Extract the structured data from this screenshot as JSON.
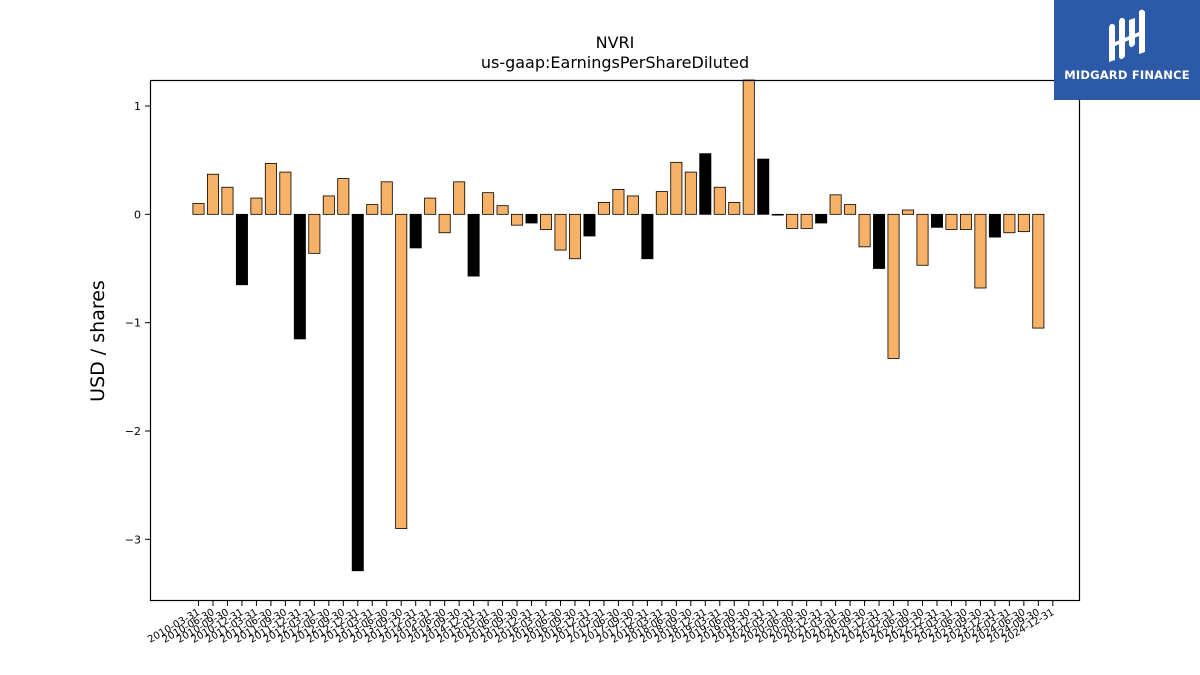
{
  "brand": {
    "name": "MIDGARD FINANCE",
    "background": "#2d5aa8"
  },
  "colors": {
    "positive_bar": "#f7b267",
    "highlight_bar": "#000000"
  },
  "chart_data": {
    "type": "bar",
    "title": "NVRI",
    "subtitle": "us-gaap:EarningsPerShareDiluted",
    "xlabel": "",
    "ylabel": "USD / shares",
    "ylim": [
      -3.56,
      1.24
    ],
    "yticks": [
      1,
      0,
      -1,
      -2,
      -3
    ],
    "ytick_labels": [
      "1",
      "0",
      "−1",
      "−2",
      "−3"
    ],
    "grid": false,
    "legend": "none",
    "categories": [
      "2010-03-31",
      "2010-06-30",
      "2010-09-30",
      "2010-12-31",
      "2011-03-31",
      "2011-06-30",
      "2011-09-30",
      "2011-12-31",
      "2012-03-31",
      "2012-06-30",
      "2012-09-30",
      "2012-12-31",
      "2013-03-31",
      "2013-06-30",
      "2013-09-30",
      "2013-12-31",
      "2014-03-31",
      "2014-06-30",
      "2014-09-30",
      "2014-12-31",
      "2015-03-31",
      "2015-06-30",
      "2015-09-30",
      "2015-12-31",
      "2016-03-31",
      "2016-06-30",
      "2016-09-30",
      "2016-12-31",
      "2017-03-31",
      "2017-06-30",
      "2017-09-30",
      "2017-12-31",
      "2018-03-31",
      "2018-06-30",
      "2018-09-30",
      "2018-12-31",
      "2019-03-31",
      "2019-06-30",
      "2019-09-30",
      "2019-12-31",
      "2020-03-31",
      "2020-06-30",
      "2020-09-30",
      "2020-12-31",
      "2021-03-31",
      "2021-06-30",
      "2021-09-30",
      "2021-12-31",
      "2022-03-31",
      "2022-06-30",
      "2022-09-30",
      "2022-12-31",
      "2023-03-31",
      "2023-06-30",
      "2023-09-30",
      "2023-12-31",
      "2024-03-31",
      "2024-06-30",
      "2024-09-30",
      "2024-12-31"
    ],
    "tick_labels": [
      "2010-03-31",
      "2010-06-30",
      "2010-09-30",
      "2010-12-31",
      "2011-03-31",
      "2011-06-30",
      "2011-09-30",
      "2011-12-31",
      "2012-03-31",
      "2012-06-30",
      "2012-09-30",
      "2012-12-31",
      "2013-03-31",
      "2013-06-30",
      "2013-09-30",
      "2013-12-31",
      "2014-03-31",
      "2014-06-30",
      "2014-09-30",
      "2014-12-31",
      "2015-03-31",
      "2015-06-30",
      "2015-09-30",
      "2015-12-31",
      "2016-03-31",
      "2016-06-30",
      "2016-09-30",
      "2016-12-31",
      "2017-03-31",
      "2017-06-30",
      "2017-09-30",
      "2017-12-31",
      "2018-03-31",
      "2018-06-30",
      "2018-09-30",
      "2018-12-31",
      "2019-03-31",
      "2019-06-30",
      "2019-09-30",
      "2019-12-31",
      "2020-03-31",
      "2020-06-30",
      "2020-09-30",
      "2020-12-31",
      "2021-03-31",
      "2021-06-30",
      "2021-09-30",
      "2021-12-31",
      "2022-03-31",
      "2022-06-30",
      "2022-09-30",
      "2022-12-31",
      "2023-03-31",
      "2023-06-30",
      "2023-09-30",
      "2023-12-31",
      "2024-03-31",
      "2024-06-30",
      "2024-09-30",
      "2024-12-31"
    ],
    "values": [
      0.1,
      0.37,
      0.25,
      -0.65,
      0.15,
      0.47,
      0.39,
      -1.15,
      -0.36,
      0.17,
      0.33,
      -3.29,
      0.09,
      0.3,
      -2.9,
      -0.31,
      0.15,
      -0.17,
      0.3,
      -0.57,
      0.2,
      0.08,
      -0.1,
      -0.08,
      -0.14,
      -0.33,
      -0.41,
      -0.2,
      0.11,
      0.23,
      0.17,
      -0.41,
      0.21,
      0.48,
      0.39,
      0.56,
      0.25,
      0.11,
      1.4,
      0.51,
      0.0,
      -0.13,
      -0.13,
      -0.08,
      0.18,
      0.09,
      -0.3,
      -0.5,
      -1.33,
      0.04,
      -0.47,
      -0.12,
      -0.14,
      -0.14,
      -0.68,
      -0.21,
      -0.17,
      -0.16,
      -1.05,
      null
    ],
    "highlight_last_of_year": true
  }
}
